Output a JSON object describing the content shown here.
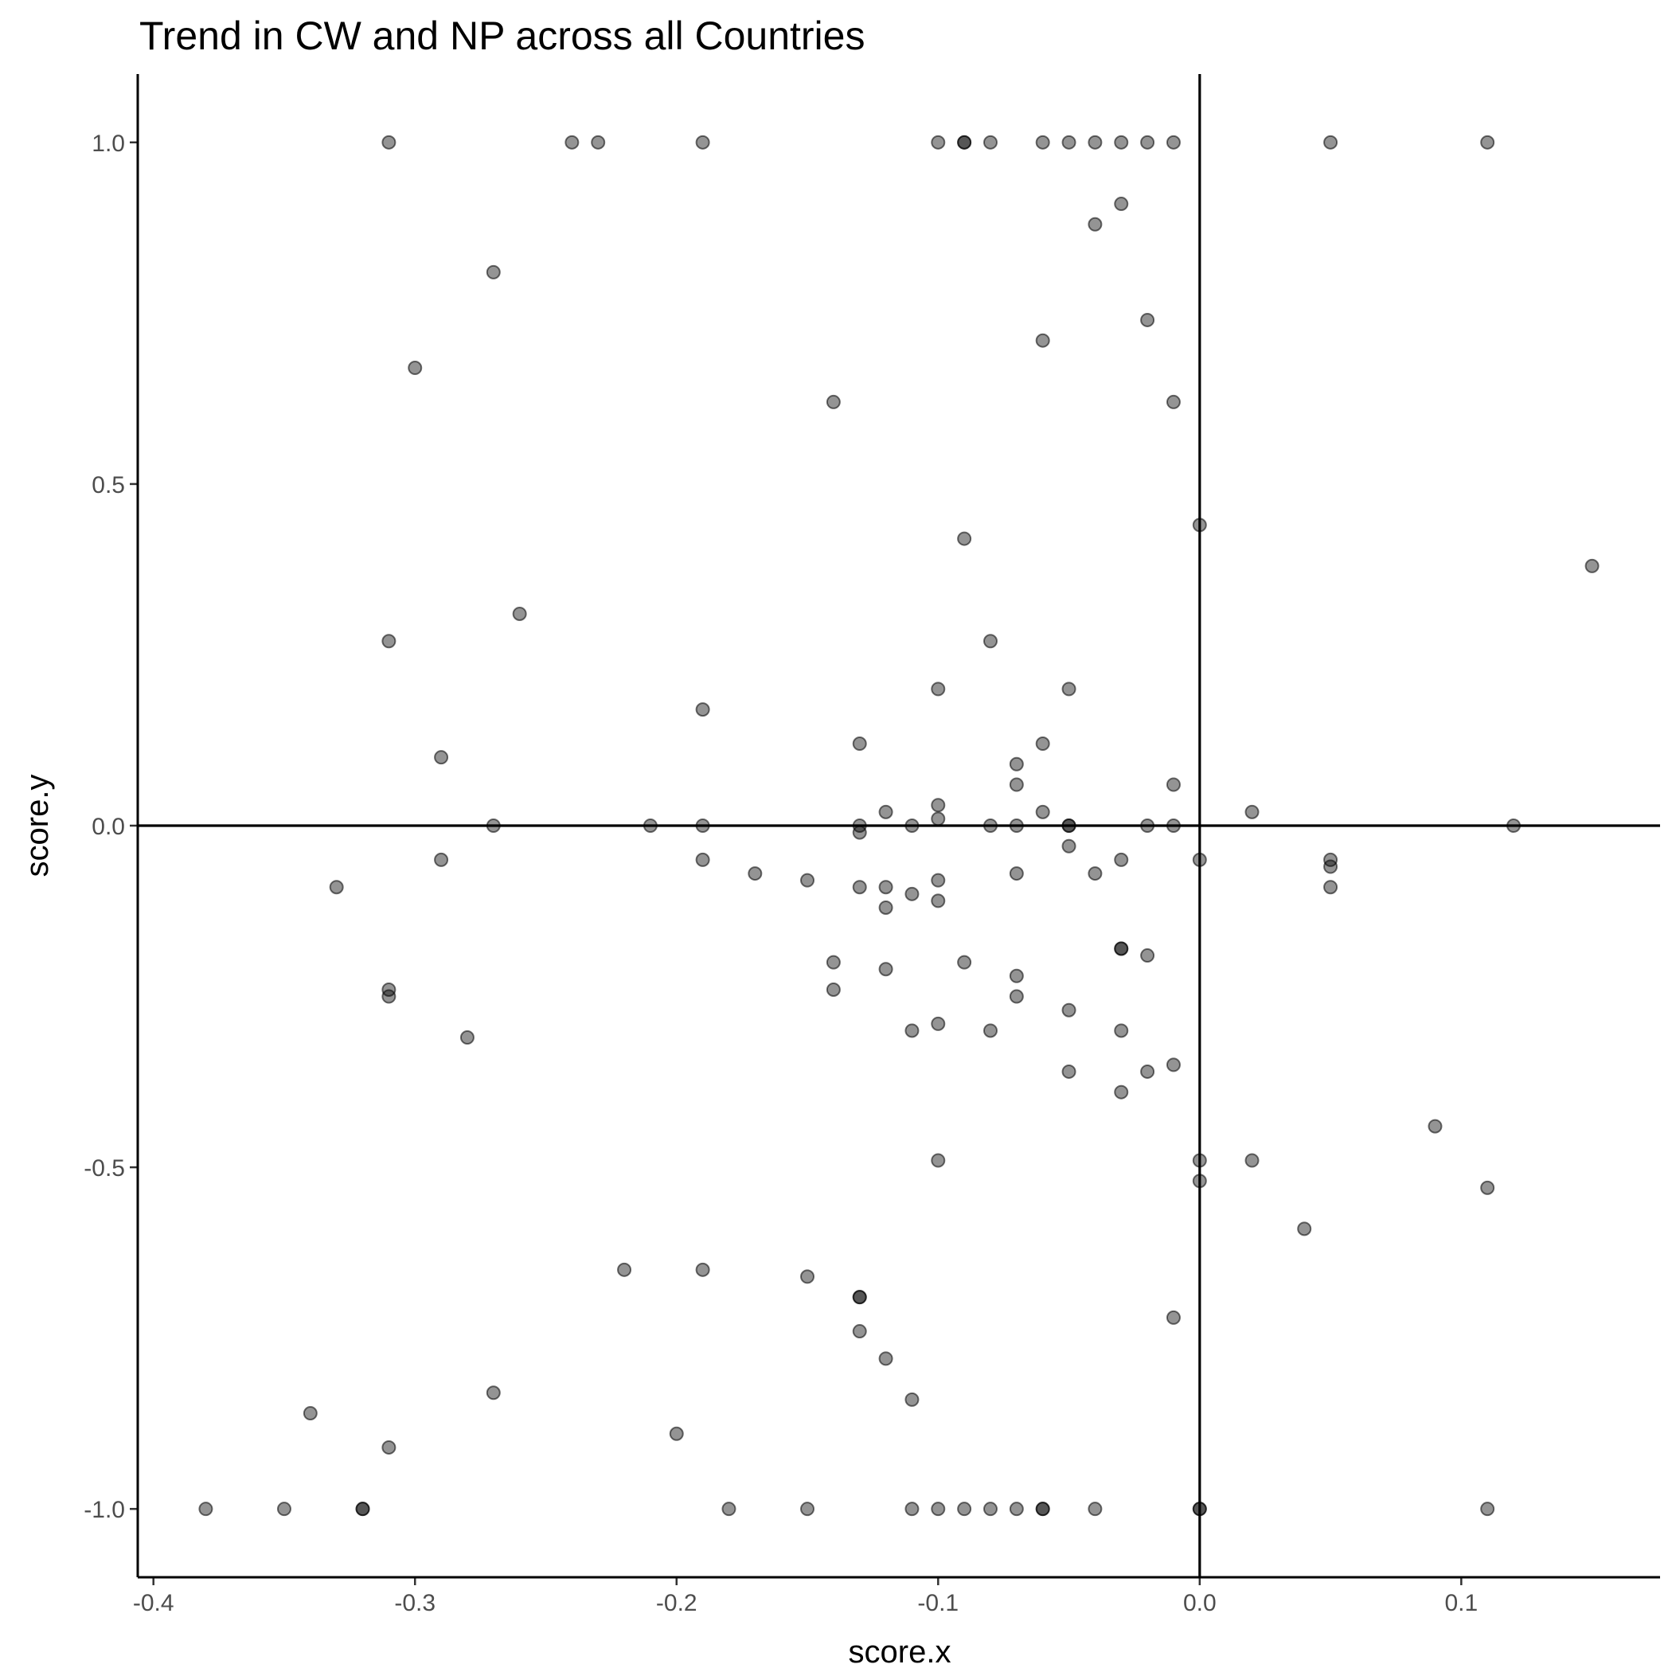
{
  "chart_data": {
    "type": "scatter",
    "title": "Trend in CW and NP across all Countries",
    "xlabel": "score.x",
    "ylabel": "score.y",
    "xlim": [
      -0.406,
      0.176
    ],
    "ylim": [
      -1.1,
      1.1
    ],
    "xticks": [
      -0.4,
      -0.3,
      -0.2,
      -0.1,
      0.0,
      0.1
    ],
    "xtick_labels": [
      "-0.4",
      "-0.3",
      "-0.2",
      "-0.1",
      "0.0",
      "0.1"
    ],
    "yticks": [
      -1.0,
      -0.5,
      0.0,
      0.5,
      1.0
    ],
    "ytick_labels": [
      "-1.0",
      "-0.5",
      "0.0",
      "0.5",
      "1.0"
    ],
    "reference_lines": {
      "x": 0,
      "y": 0
    },
    "grid": false,
    "legend": "none",
    "point_color": "#000000",
    "point_alpha": 0.42,
    "points": [
      [
        -0.31,
        1.0
      ],
      [
        -0.24,
        1.0
      ],
      [
        -0.23,
        1.0
      ],
      [
        -0.19,
        1.0
      ],
      [
        -0.1,
        1.0
      ],
      [
        -0.09,
        1.0
      ],
      [
        -0.09,
        1.0
      ],
      [
        -0.08,
        1.0
      ],
      [
        -0.06,
        1.0
      ],
      [
        -0.05,
        1.0
      ],
      [
        -0.04,
        1.0
      ],
      [
        -0.03,
        1.0
      ],
      [
        -0.02,
        1.0
      ],
      [
        -0.01,
        1.0
      ],
      [
        0.05,
        1.0
      ],
      [
        0.11,
        1.0
      ],
      [
        -0.03,
        0.91
      ],
      [
        -0.04,
        0.88
      ],
      [
        -0.27,
        0.81
      ],
      [
        -0.02,
        0.74
      ],
      [
        -0.06,
        0.71
      ],
      [
        -0.3,
        0.67
      ],
      [
        -0.14,
        0.62
      ],
      [
        -0.01,
        0.62
      ],
      [
        0.0,
        0.44
      ],
      [
        -0.09,
        0.42
      ],
      [
        0.15,
        0.38
      ],
      [
        -0.26,
        0.31
      ],
      [
        -0.31,
        0.27
      ],
      [
        -0.08,
        0.27
      ],
      [
        -0.1,
        0.2
      ],
      [
        -0.05,
        0.2
      ],
      [
        -0.19,
        0.17
      ],
      [
        -0.13,
        0.12
      ],
      [
        -0.06,
        0.12
      ],
      [
        -0.29,
        0.1
      ],
      [
        -0.07,
        0.09
      ],
      [
        -0.07,
        0.06
      ],
      [
        -0.01,
        0.06
      ],
      [
        -0.1,
        0.03
      ],
      [
        -0.12,
        0.02
      ],
      [
        -0.06,
        0.02
      ],
      [
        0.02,
        0.02
      ],
      [
        -0.1,
        0.01
      ],
      [
        -0.27,
        0.0
      ],
      [
        -0.21,
        0.0
      ],
      [
        -0.19,
        0.0
      ],
      [
        -0.13,
        0.0
      ],
      [
        -0.11,
        0.0
      ],
      [
        -0.08,
        0.0
      ],
      [
        -0.07,
        0.0
      ],
      [
        -0.05,
        0.0
      ],
      [
        -0.05,
        0.0
      ],
      [
        -0.02,
        0.0
      ],
      [
        -0.01,
        0.0
      ],
      [
        0.12,
        0.0
      ],
      [
        -0.13,
        -0.01
      ],
      [
        -0.05,
        -0.03
      ],
      [
        -0.29,
        -0.05
      ],
      [
        -0.19,
        -0.05
      ],
      [
        -0.03,
        -0.05
      ],
      [
        0.0,
        -0.05
      ],
      [
        0.05,
        -0.05
      ],
      [
        0.05,
        -0.06
      ],
      [
        -0.17,
        -0.07
      ],
      [
        -0.07,
        -0.07
      ],
      [
        -0.04,
        -0.07
      ],
      [
        -0.15,
        -0.08
      ],
      [
        -0.1,
        -0.08
      ],
      [
        -0.33,
        -0.09
      ],
      [
        -0.13,
        -0.09
      ],
      [
        -0.12,
        -0.09
      ],
      [
        0.05,
        -0.09
      ],
      [
        -0.11,
        -0.1
      ],
      [
        -0.1,
        -0.11
      ],
      [
        -0.12,
        -0.12
      ],
      [
        -0.03,
        -0.18
      ],
      [
        -0.03,
        -0.18
      ],
      [
        -0.02,
        -0.19
      ],
      [
        -0.14,
        -0.2
      ],
      [
        -0.09,
        -0.2
      ],
      [
        -0.12,
        -0.21
      ],
      [
        -0.07,
        -0.22
      ],
      [
        -0.31,
        -0.24
      ],
      [
        -0.14,
        -0.24
      ],
      [
        -0.31,
        -0.25
      ],
      [
        -0.07,
        -0.25
      ],
      [
        -0.05,
        -0.27
      ],
      [
        -0.11,
        -0.3
      ],
      [
        -0.1,
        -0.29
      ],
      [
        -0.08,
        -0.3
      ],
      [
        -0.03,
        -0.3
      ],
      [
        -0.28,
        -0.31
      ],
      [
        -0.01,
        -0.35
      ],
      [
        -0.05,
        -0.36
      ],
      [
        -0.02,
        -0.36
      ],
      [
        -0.03,
        -0.39
      ],
      [
        0.09,
        -0.44
      ],
      [
        -0.1,
        -0.49
      ],
      [
        0.0,
        -0.49
      ],
      [
        0.02,
        -0.49
      ],
      [
        0.0,
        -0.52
      ],
      [
        0.11,
        -0.53
      ],
      [
        0.04,
        -0.59
      ],
      [
        -0.22,
        -0.65
      ],
      [
        -0.19,
        -0.65
      ],
      [
        -0.15,
        -0.66
      ],
      [
        -0.13,
        -0.69
      ],
      [
        -0.13,
        -0.69
      ],
      [
        -0.01,
        -0.72
      ],
      [
        -0.13,
        -0.74
      ],
      [
        -0.12,
        -0.78
      ],
      [
        -0.27,
        -0.83
      ],
      [
        -0.11,
        -0.84
      ],
      [
        -0.34,
        -0.86
      ],
      [
        -0.2,
        -0.89
      ],
      [
        -0.31,
        -0.91
      ],
      [
        -0.38,
        -1.0
      ],
      [
        -0.35,
        -1.0
      ],
      [
        -0.32,
        -1.0
      ],
      [
        -0.32,
        -1.0
      ],
      [
        -0.18,
        -1.0
      ],
      [
        -0.15,
        -1.0
      ],
      [
        -0.11,
        -1.0
      ],
      [
        -0.1,
        -1.0
      ],
      [
        -0.09,
        -1.0
      ],
      [
        -0.08,
        -1.0
      ],
      [
        -0.07,
        -1.0
      ],
      [
        -0.06,
        -1.0
      ],
      [
        -0.06,
        -1.0
      ],
      [
        -0.04,
        -1.0
      ],
      [
        0.0,
        -1.0
      ],
      [
        0.0,
        -1.0
      ],
      [
        0.11,
        -1.0
      ]
    ]
  }
}
